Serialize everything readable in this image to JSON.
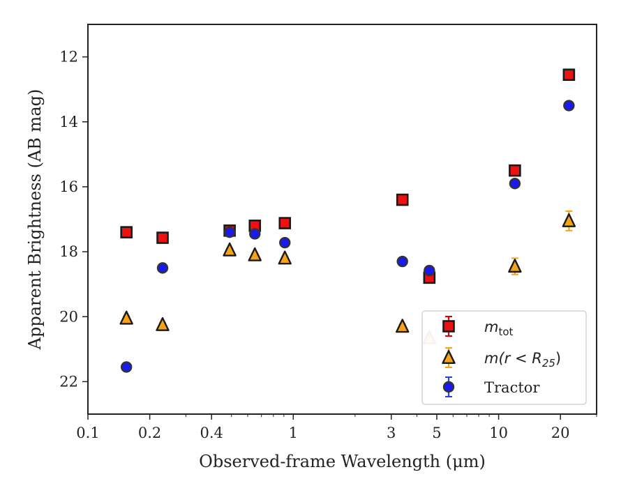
{
  "chart_data": {
    "type": "scatter",
    "xlabel": "Observed-frame Wavelength (μm)",
    "ylabel": "Apparent Brightness (AB mag)",
    "x_scale": "log",
    "xlim": [
      0.1,
      30
    ],
    "ylim": [
      23,
      11
    ],
    "y_inverted": true,
    "x_tick_labels": [
      "0.1",
      "0.2",
      "0.4",
      "1",
      "3",
      "5",
      "10",
      "20"
    ],
    "x_ticks": [
      0.1,
      0.2,
      0.4,
      1,
      3,
      5,
      10,
      20
    ],
    "y_tick_labels": [
      "12",
      "14",
      "16",
      "18",
      "20",
      "22"
    ],
    "y_ticks": [
      12,
      14,
      16,
      18,
      20,
      22
    ],
    "grid": false,
    "legend_position": "lower-right",
    "series": [
      {
        "name": "m_tot",
        "legend_label_main": "m",
        "legend_label_sub": "tot",
        "marker": "square",
        "face_color": "#ee1111",
        "edge_color": "#1a1a1a",
        "errbar_color": "#dd0000",
        "x": [
          0.154,
          0.231,
          0.49,
          0.65,
          0.91,
          3.4,
          4.6,
          12.0,
          22.0
        ],
        "y": [
          17.4,
          17.57,
          17.35,
          17.2,
          17.12,
          16.4,
          18.8,
          15.5,
          12.55
        ],
        "yerr": [
          0.05,
          0.05,
          0.05,
          0.06,
          0.06,
          0.05,
          0.05,
          0.07,
          0.06
        ]
      },
      {
        "name": "m(r < R25)",
        "legend_label_main": "m(r < R",
        "legend_label_sub": "25",
        "legend_label_end": ")",
        "marker": "triangle",
        "face_color": "#f5a31a",
        "edge_color": "#1a1a1a",
        "errbar_color": "#f5a31a",
        "x": [
          0.154,
          0.231,
          0.49,
          0.65,
          0.91,
          3.4,
          4.6,
          12.0,
          22.0
        ],
        "y": [
          20.05,
          20.25,
          17.95,
          18.1,
          18.2,
          20.3,
          20.65,
          18.45,
          17.05
        ],
        "yerr": [
          0.06,
          0.06,
          0.05,
          0.05,
          0.05,
          0.07,
          0.08,
          0.25,
          0.3
        ],
        "faded": [
          false,
          false,
          false,
          false,
          false,
          false,
          true,
          false,
          false
        ]
      },
      {
        "name": "Tractor",
        "legend_label_main": "Tractor",
        "marker": "circle",
        "face_color": "#1a1aee",
        "edge_color": "#333333",
        "errbar_color": "#2244ee",
        "x": [
          0.154,
          0.231,
          0.49,
          0.65,
          0.91,
          3.4,
          4.6,
          12.0,
          22.0
        ],
        "y": [
          21.55,
          18.5,
          17.4,
          17.45,
          17.72,
          18.3,
          18.58,
          15.9,
          13.5
        ],
        "yerr": [
          0.04,
          0.04,
          0.04,
          0.04,
          0.04,
          0.04,
          0.04,
          0.05,
          0.05
        ]
      }
    ]
  }
}
